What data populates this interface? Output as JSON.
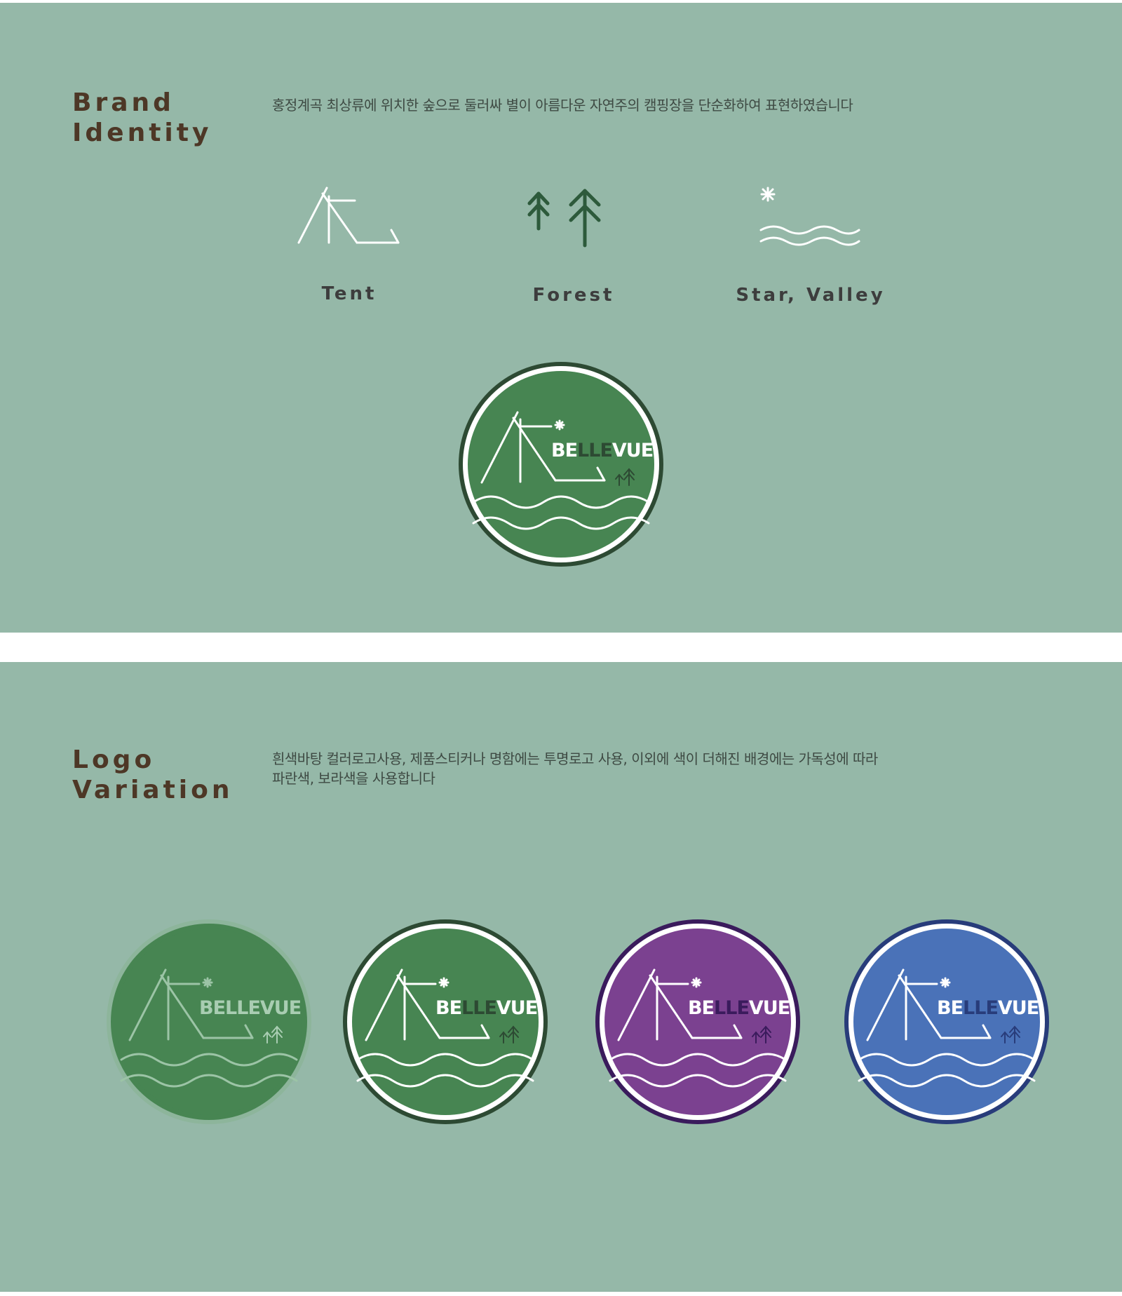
{
  "brand_identity": {
    "title_line1": "Brand",
    "title_line2": "Identity",
    "description": "홍정계곡 최상류에 위치한 숲으로 둘러싸 별이 아름다운 자연주의 캠핑장을 단순화하여 표현하였습니다",
    "motifs": [
      {
        "label": "Tent",
        "icon": "tent-icon"
      },
      {
        "label": "Forest",
        "icon": "trees-icon"
      },
      {
        "label": "Star, Valley",
        "icon": "star-waves-icon"
      }
    ],
    "main_logo": {
      "word_part1": "BE",
      "word_part2": "LLE",
      "word_part3": "VUE"
    }
  },
  "logo_variation": {
    "title_line1": "Logo",
    "title_line2": "Variation",
    "description_line1": "흰색바탕 컬러로고사용, 제품스티커나 명함에는 투명로고 사용, 이외에  색이 더해진 배경에는 가독성에 따라",
    "description_line2": "파란색, 보라색을 사용합니다",
    "variants": [
      {
        "word_part1": "BE",
        "word_part2": "LLE",
        "word_part3": "VUE",
        "fill": "#478552",
        "outer": "#8db59b",
        "ring": "#478552",
        "line": "#9cc4a6",
        "text": "#a9cdb2",
        "accent": "#a9cdb2"
      },
      {
        "word_part1": "BE",
        "word_part2": "LLE",
        "word_part3": "VUE",
        "fill": "#478552",
        "outer": "#2d4a33",
        "ring": "#ffffff",
        "line": "#ffffff",
        "text": "#ffffff",
        "accent": "#2d4a33"
      },
      {
        "word_part1": "BE",
        "word_part2": "LLE",
        "word_part3": "VUE",
        "fill": "#7b4190",
        "outer": "#3a1b5c",
        "ring": "#ffffff",
        "line": "#ffffff",
        "text": "#ffffff",
        "accent": "#3a1b5c"
      },
      {
        "word_part1": "BE",
        "word_part2": "LLE",
        "word_part3": "VUE",
        "fill": "#4a72b8",
        "outer": "#283c7a",
        "ring": "#ffffff",
        "line": "#ffffff",
        "text": "#ffffff",
        "accent": "#283c7a"
      }
    ]
  },
  "colors": {
    "panel_bg": "#95b8a8",
    "heading": "#4d3726",
    "forest_icon": "#2d5a3b",
    "main_fill": "#478552",
    "main_outer": "#2d4a33"
  }
}
